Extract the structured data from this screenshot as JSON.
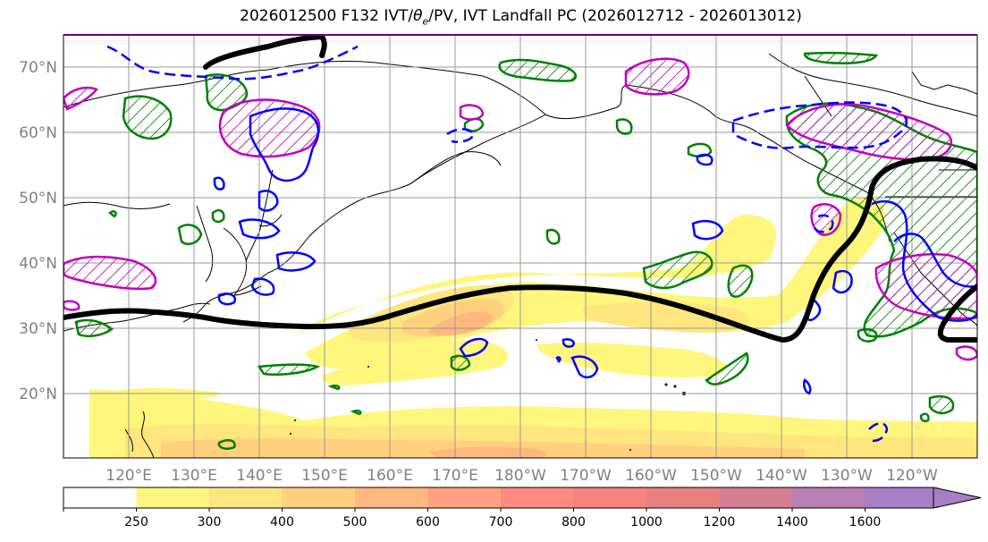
{
  "title": {
    "prefix": "2026012500 F132 IVT/",
    "theta": "θ",
    "sub": "e",
    "suffix": "/PV, IVT Landfall PC (2026012712 - 2026013012)"
  },
  "map": {
    "lat_labels": [
      "70°N",
      "60°N",
      "50°N",
      "40°N",
      "30°N",
      "20°N"
    ],
    "lon_labels": [
      "120°E",
      "130°E",
      "140°E",
      "150°E",
      "160°E",
      "170°E",
      "180°W",
      "170°W",
      "160°W",
      "150°W",
      "140°W",
      "130°W",
      "120°W"
    ],
    "lat_range": [
      10,
      75
    ],
    "lon_range_east": [
      110,
      250
    ]
  },
  "colorbar": {
    "levels": [
      "250",
      "300",
      "400",
      "500",
      "600",
      "700",
      "800",
      "1000",
      "1200",
      "1400",
      "1600"
    ],
    "colors": [
      "#ffffff",
      "#fff67d",
      "#ffe67e",
      "#ffd17f",
      "#ffb97f",
      "#ffa17f",
      "#ff8a7f",
      "#f7837e",
      "#e9807f",
      "#d67e94",
      "#b97eb4",
      "#a67fc4"
    ]
  },
  "legend_colors": {
    "theta_e_solid": "#0000ff",
    "pv_green": "#008000",
    "pv_magenta": "#c000c0",
    "landfall_pc": "#000000"
  }
}
